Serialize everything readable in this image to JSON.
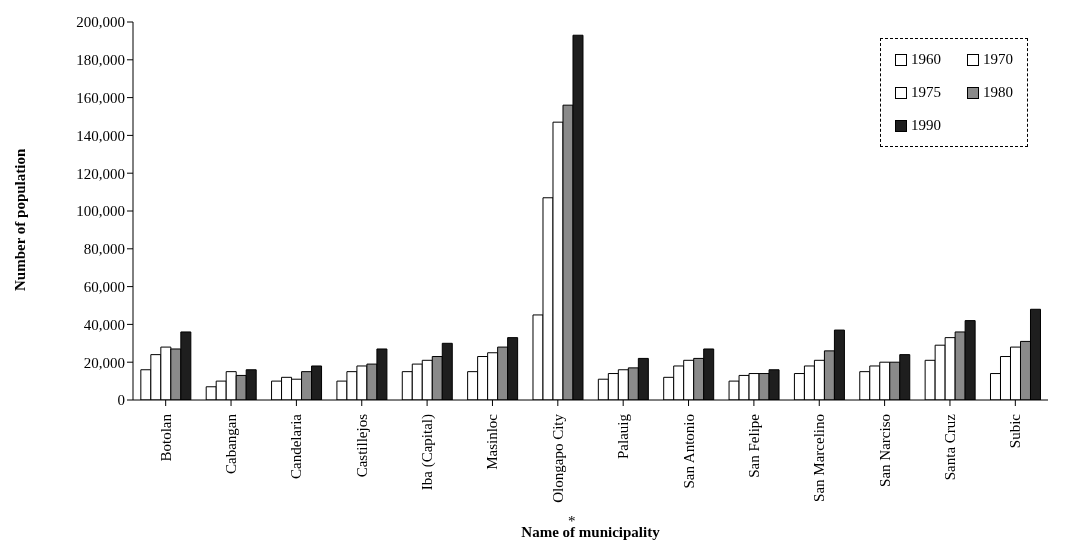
{
  "chart_data": {
    "type": "bar",
    "xlabel": "Name of municipality",
    "ylabel": "Number of population",
    "categories": [
      "Botolan",
      "Cabangan",
      "Candelaria",
      "Castillejos",
      "Iba (Capital)",
      "Masinloc",
      "Olongapo City",
      "Palauig",
      "San Antonio",
      "San Felipe",
      "San Marcelino",
      "San Narciso",
      "Santa Cruz",
      "Subic"
    ],
    "series": [
      {
        "name": "1960",
        "color": "#ffffff",
        "values": [
          16000,
          7000,
          10000,
          10000,
          15000,
          15000,
          45000,
          11000,
          12000,
          10000,
          14000,
          15000,
          21000,
          14000
        ]
      },
      {
        "name": "1970",
        "color": "#ffffff",
        "values": [
          24000,
          10000,
          12000,
          15000,
          19000,
          23000,
          107000,
          14000,
          18000,
          13000,
          18000,
          18000,
          29000,
          23000
        ]
      },
      {
        "name": "1975",
        "color": "#ffffff",
        "values": [
          28000,
          15000,
          11000,
          18000,
          21000,
          25000,
          147000,
          16000,
          21000,
          14000,
          21000,
          20000,
          33000,
          28000
        ]
      },
      {
        "name": "1980",
        "color": "#8a8a8a",
        "values": [
          27000,
          13000,
          15000,
          19000,
          23000,
          28000,
          156000,
          17000,
          22000,
          14000,
          26000,
          20000,
          36000,
          31000
        ]
      },
      {
        "name": "1990",
        "color": "#1e1e1e",
        "values": [
          36000,
          16000,
          18000,
          27000,
          30000,
          33000,
          193000,
          22000,
          27000,
          16000,
          37000,
          24000,
          42000,
          48000
        ]
      }
    ],
    "ylim": [
      0,
      200000
    ],
    "yticks": [
      0,
      {
        "value": 20000,
        "label": "20,000"
      },
      {
        "value": 40000,
        "label": "40,000"
      },
      {
        "value": 60000,
        "label": "60,000"
      },
      {
        "value": 80000,
        "label": "80,000"
      },
      {
        "value": 100000,
        "label": "100,000"
      },
      {
        "value": 120000,
        "label": "120,000"
      },
      {
        "value": 140000,
        "label": "140,000"
      },
      {
        "value": 160000,
        "label": "160,000"
      },
      {
        "value": 180000,
        "label": "180,000"
      },
      {
        "value": 200000,
        "label": "200,000"
      }
    ],
    "legend": "top right",
    "annotations": [
      "*"
    ]
  }
}
